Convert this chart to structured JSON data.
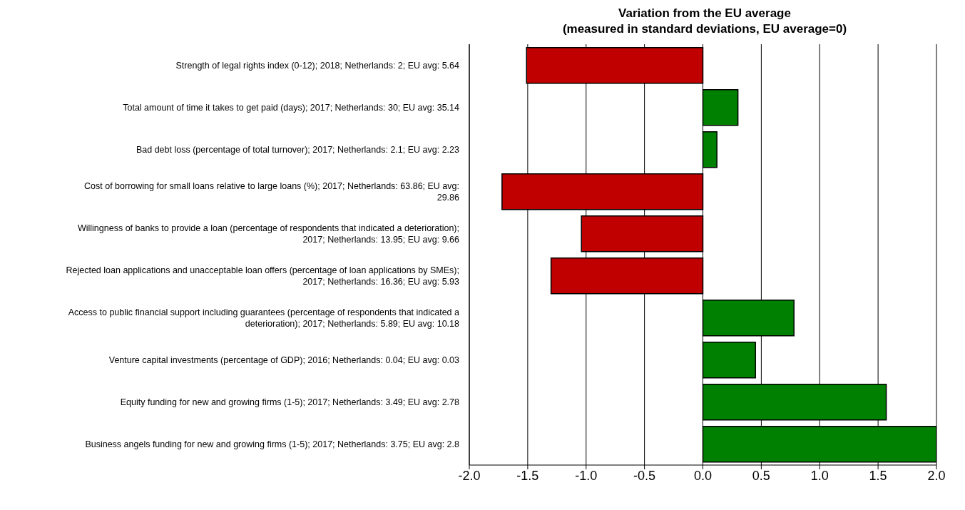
{
  "chart_data": {
    "type": "bar",
    "orientation": "horizontal",
    "title": "Variation from the EU average",
    "subtitle": "(measured in standard deviations, EU average=0)",
    "categories": [
      "Strength of legal rights index (0-12); 2018; Netherlands: 2; EU avg: 5.64",
      "Total amount of time it takes to get paid (days); 2017; Netherlands: 30; EU avg: 35.14",
      "Bad debt loss (percentage of total turnover); 2017; Netherlands: 2.1; EU avg: 2.23",
      "Cost of borrowing for small loans relative to large loans (%); 2017; Netherlands: 63.86; EU avg: 29.86",
      "Willingness of banks to provide a loan (percentage of respondents that indicated a deterioration); 2017; Netherlands: 13.95; EU avg: 9.66",
      "Rejected loan applications and unacceptable loan offers (percentage of loan applications by SMEs); 2017; Netherlands: 16.36; EU avg: 5.93",
      "Access to public financial support including guarantees (percentage of respondents that indicated a deterioration); 2017; Netherlands: 5.89; EU avg: 10.18",
      "Venture capital investments (percentage of GDP); 2016; Netherlands: 0.04; EU avg: 0.03",
      "Equity funding for new and growing firms (1-5); 2017; Netherlands: 3.49; EU avg: 2.78",
      "Business angels funding for new and growing firms (1-5); 2017; Netherlands: 3.75; EU avg: 2.8"
    ],
    "values": [
      -1.51,
      0.3,
      0.12,
      -1.72,
      -1.04,
      -1.3,
      0.78,
      0.45,
      1.57,
      2.0
    ],
    "colors": [
      "#c00000",
      "#008000",
      "#008000",
      "#c00000",
      "#c00000",
      "#c00000",
      "#008000",
      "#008000",
      "#008000",
      "#008000"
    ],
    "xlim": [
      -2.0,
      2.0
    ],
    "xticks": [
      {
        "value": -2,
        "label": "-2.0"
      },
      {
        "value": -1.5,
        "label": "-1.5"
      },
      {
        "value": -1,
        "label": "-1.0"
      },
      {
        "value": -0.5,
        "label": "-0.5"
      },
      {
        "value": 0,
        "label": "0.0"
      },
      {
        "value": 0.5,
        "label": "0.5"
      },
      {
        "value": 1,
        "label": "1.0"
      },
      {
        "value": 1.5,
        "label": "1.5"
      },
      {
        "value": 2,
        "label": "2.0"
      }
    ],
    "grid": "x"
  }
}
